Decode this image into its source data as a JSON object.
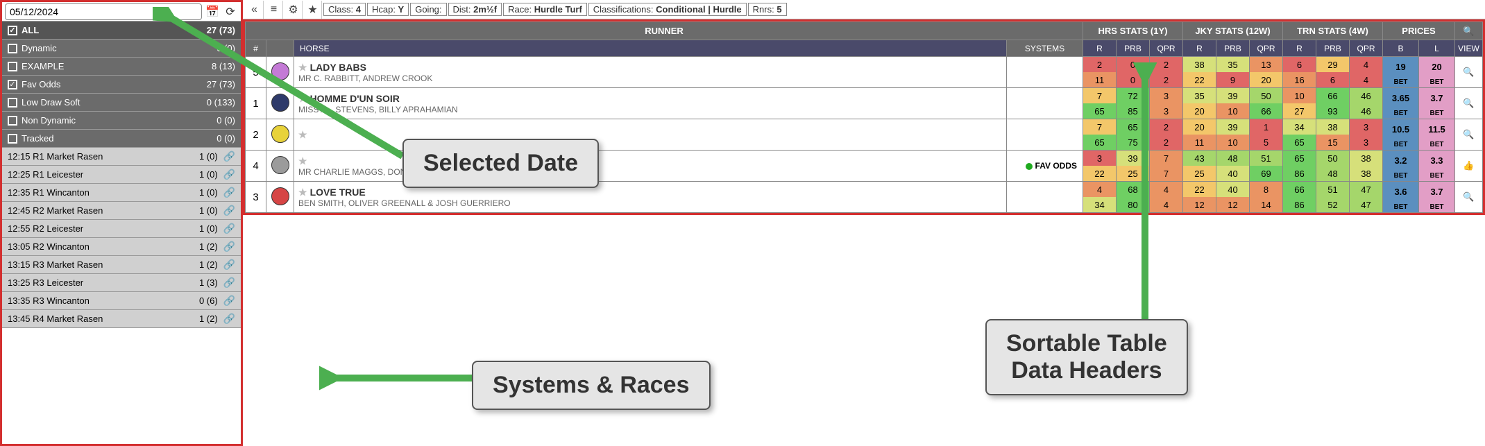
{
  "sidebar": {
    "date": "05/12/2024",
    "categories": [
      {
        "label": "ALL",
        "count": "27 (73)",
        "checked": true,
        "all": true
      },
      {
        "label": "Dynamic",
        "count": "0 (0)",
        "checked": false
      },
      {
        "label": "EXAMPLE",
        "count": "8 (13)",
        "checked": false
      },
      {
        "label": "Fav Odds",
        "count": "27 (73)",
        "checked": true
      },
      {
        "label": "Low Draw Soft",
        "count": "0 (133)",
        "checked": false
      },
      {
        "label": "Non Dynamic",
        "count": "0 (0)",
        "checked": false
      },
      {
        "label": "Tracked",
        "count": "0 (0)",
        "checked": false
      }
    ],
    "races": [
      {
        "label": "12:15 R1 Market Rasen",
        "count": "1 (0)",
        "selected": true
      },
      {
        "label": "12:25 R1 Leicester",
        "count": "1 (0)"
      },
      {
        "label": "12:35 R1 Wincanton",
        "count": "1 (0)"
      },
      {
        "label": "12:45 R2 Market Rasen",
        "count": "1 (0)"
      },
      {
        "label": "12:55 R2 Leicester",
        "count": "1 (0)"
      },
      {
        "label": "13:05 R2 Wincanton",
        "count": "1 (2)"
      },
      {
        "label": "13:15 R3 Market Rasen",
        "count": "1 (2)"
      },
      {
        "label": "13:25 R3 Leicester",
        "count": "1 (3)"
      },
      {
        "label": "13:35 R3 Wincanton",
        "count": "0 (6)"
      },
      {
        "label": "13:45 R4 Market Rasen",
        "count": "1 (2)"
      }
    ]
  },
  "toolbar": {
    "crumbs": [
      {
        "k": "Class:",
        "v": "4"
      },
      {
        "k": "Hcap:",
        "v": "Y"
      },
      {
        "k": "Going:",
        "v": ""
      },
      {
        "k": "Dist:",
        "v": "2m½f"
      },
      {
        "k": "Race:",
        "v": "Hurdle Turf"
      },
      {
        "k": "Classifications:",
        "v": "Conditional | Hurdle"
      },
      {
        "k": "Rnrs:",
        "v": "5"
      }
    ]
  },
  "headers": {
    "top": [
      "RUNNER",
      "HRS STATS (1Y)",
      "JKY STATS (12W)",
      "TRN STATS (4W)",
      "PRICES"
    ],
    "sub_num": "#",
    "sub_horse": "HORSE",
    "sub_systems": "SYSTEMS",
    "sub_stats": [
      "R",
      "PRB",
      "QPR"
    ],
    "sub_prices": [
      "B",
      "L"
    ],
    "sub_view": "VIEW"
  },
  "colors": {
    "scale": [
      "#e06666",
      "#ea9463",
      "#f3c76a",
      "#d6e07a",
      "#a5d66b",
      "#6fcf63"
    ],
    "price_b": "#5b8fbf",
    "price_l": "#e29ec6",
    "red_border": "#d32f2f"
  },
  "rows": [
    {
      "num": "5",
      "silk": "#c47ad6",
      "horse": "LADY BABS",
      "sub": "MR C. RABBITT, ANDREW CROOK",
      "systems": "",
      "cells": [
        {
          "t": "2",
          "b": "11",
          "ct": 0,
          "cb": 1
        },
        {
          "t": "0",
          "b": "0",
          "ct": 0,
          "cb": 0
        },
        {
          "t": "2",
          "b": "2",
          "ct": 0,
          "cb": 0
        },
        {
          "t": "38",
          "b": "22",
          "ct": 3,
          "cb": 2
        },
        {
          "t": "35",
          "b": "9",
          "ct": 3,
          "cb": 0
        },
        {
          "t": "13",
          "b": "20",
          "ct": 1,
          "cb": 2
        },
        {
          "t": "6",
          "b": "16",
          "ct": 0,
          "cb": 1
        },
        {
          "t": "29",
          "b": "6",
          "ct": 2,
          "cb": 0
        },
        {
          "t": "4",
          "b": "4",
          "ct": 0,
          "cb": 0
        }
      ],
      "pb": "19",
      "pl": "20",
      "view": "mag"
    },
    {
      "num": "1",
      "silk": "#2e3a6a",
      "horse": "HOMME D'UN SOIR",
      "sub": "MISS A... STEVENS, BILLY APRAHAMIAN",
      "systems": "",
      "cells": [
        {
          "t": "7",
          "b": "65",
          "ct": 2,
          "cb": 5
        },
        {
          "t": "72",
          "b": "85",
          "ct": 5,
          "cb": 5
        },
        {
          "t": "3",
          "b": "3",
          "ct": 1,
          "cb": 1
        },
        {
          "t": "35",
          "b": "20",
          "ct": 3,
          "cb": 2
        },
        {
          "t": "39",
          "b": "10",
          "ct": 3,
          "cb": 1
        },
        {
          "t": "50",
          "b": "66",
          "ct": 4,
          "cb": 5
        },
        {
          "t": "10",
          "b": "27",
          "ct": 1,
          "cb": 2
        },
        {
          "t": "66",
          "b": "93",
          "ct": 5,
          "cb": 5
        },
        {
          "t": "46",
          "b": "46",
          "ct": 4,
          "cb": 4
        }
      ],
      "pb": "3.65",
      "pl": "3.7",
      "view": "mag"
    },
    {
      "num": "2",
      "silk": "#e8d23a",
      "horse": "",
      "sub": "",
      "systems": "",
      "cells": [
        {
          "t": "7",
          "b": "65",
          "ct": 2,
          "cb": 5
        },
        {
          "t": "65",
          "b": "75",
          "ct": 5,
          "cb": 5
        },
        {
          "t": "2",
          "b": "2",
          "ct": 0,
          "cb": 0
        },
        {
          "t": "20",
          "b": "11",
          "ct": 2,
          "cb": 1
        },
        {
          "t": "39",
          "b": "10",
          "ct": 3,
          "cb": 1
        },
        {
          "t": "1",
          "b": "5",
          "ct": 0,
          "cb": 0
        },
        {
          "t": "34",
          "b": "65",
          "ct": 3,
          "cb": 5
        },
        {
          "t": "38",
          "b": "15",
          "ct": 3,
          "cb": 1
        },
        {
          "t": "3",
          "b": "3",
          "ct": 0,
          "cb": 0
        }
      ],
      "pb": "10.5",
      "pl": "11.5",
      "view": "mag"
    },
    {
      "num": "4",
      "silk": "#9b9b9b",
      "horse": "",
      "sub": "MR CHARLIE MAGGS, DONALD MCCAIN",
      "systems": "FAV ODDS",
      "systems_dot": true,
      "cells": [
        {
          "t": "3",
          "b": "22",
          "ct": 0,
          "cb": 2
        },
        {
          "t": "39",
          "b": "25",
          "ct": 3,
          "cb": 2
        },
        {
          "t": "7",
          "b": "7",
          "ct": 1,
          "cb": 1
        },
        {
          "t": "43",
          "b": "25",
          "ct": 4,
          "cb": 2
        },
        {
          "t": "48",
          "b": "40",
          "ct": 4,
          "cb": 3
        },
        {
          "t": "51",
          "b": "69",
          "ct": 4,
          "cb": 5
        },
        {
          "t": "65",
          "b": "86",
          "ct": 5,
          "cb": 5
        },
        {
          "t": "50",
          "b": "48",
          "ct": 4,
          "cb": 4
        },
        {
          "t": "38",
          "b": "38",
          "ct": 3,
          "cb": 3
        }
      ],
      "pb": "3.2",
      "pl": "3.3",
      "view": "thumb"
    },
    {
      "num": "3",
      "silk": "#d64545",
      "horse": "LOVE TRUE",
      "sub": "BEN SMITH, OLIVER GREENALL & JOSH GUERRIERO",
      "systems": "",
      "cells": [
        {
          "t": "4",
          "b": "34",
          "ct": 1,
          "cb": 3
        },
        {
          "t": "68",
          "b": "80",
          "ct": 5,
          "cb": 5
        },
        {
          "t": "4",
          "b": "4",
          "ct": 1,
          "cb": 1
        },
        {
          "t": "22",
          "b": "12",
          "ct": 2,
          "cb": 1
        },
        {
          "t": "40",
          "b": "12",
          "ct": 3,
          "cb": 1
        },
        {
          "t": "8",
          "b": "14",
          "ct": 1,
          "cb": 1
        },
        {
          "t": "66",
          "b": "86",
          "ct": 5,
          "cb": 5
        },
        {
          "t": "51",
          "b": "52",
          "ct": 4,
          "cb": 4
        },
        {
          "t": "47",
          "b": "47",
          "ct": 4,
          "cb": 4
        }
      ],
      "pb": "3.6",
      "pl": "3.7",
      "view": "mag"
    }
  ],
  "callouts": {
    "date": "Selected Date",
    "systems": "Systems & Races",
    "headers": "Sortable Table\nData Headers"
  }
}
